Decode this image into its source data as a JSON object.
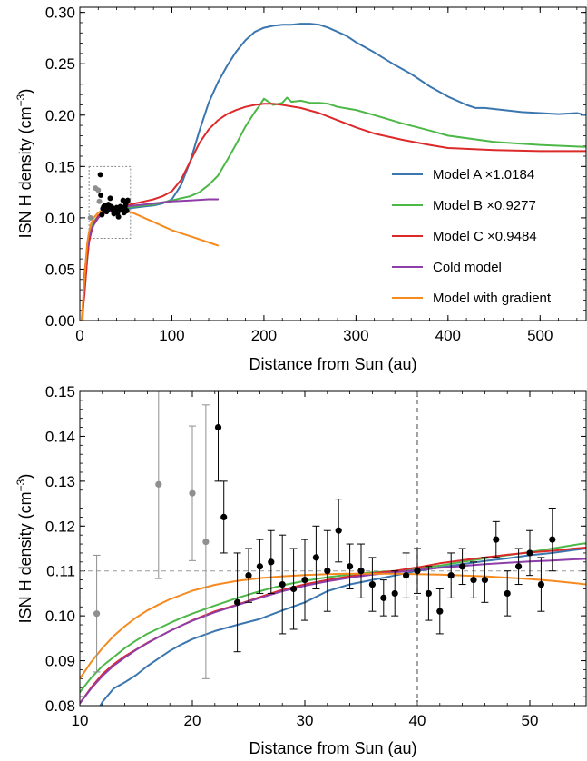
{
  "chart_data": [
    {
      "type": "line",
      "xlabel": "Distance from Sun (au)",
      "ylabel_main": "ISN H density (cm",
      "ylabel_sup": "−3",
      "ylabel_close": ")",
      "xlim": [
        0,
        550
      ],
      "ylim": [
        0,
        0.305
      ],
      "xticks": [
        0,
        100,
        200,
        300,
        400,
        500
      ],
      "xtick_labels": [
        "0",
        "100",
        "200",
        "300",
        "400",
        "500"
      ],
      "yticks": [
        0,
        0.05,
        0.1,
        0.15,
        0.2,
        0.25,
        0.3
      ],
      "ytick_labels": [
        "0.00",
        "0.05",
        "0.10",
        "0.15",
        "0.20",
        "0.25",
        "0.30"
      ],
      "legend_position": "right",
      "zoom_box": {
        "x": [
          10,
          55
        ],
        "y": [
          0.08,
          0.15
        ]
      },
      "series": [
        {
          "name": "Model A ×1.0184",
          "color": "#3b76af",
          "x": [
            5,
            10,
            15,
            20,
            25,
            30,
            40,
            50,
            60,
            70,
            80,
            90,
            100,
            110,
            120,
            130,
            140,
            150,
            160,
            170,
            180,
            190,
            200,
            210,
            220,
            230,
            240,
            250,
            260,
            270,
            280,
            290,
            300,
            320,
            340,
            360,
            380,
            400,
            420,
            430,
            440,
            460,
            480,
            500,
            520,
            540,
            550
          ],
          "y": [
            0.03,
            0.078,
            0.094,
            0.101,
            0.104,
            0.106,
            0.108,
            0.109,
            0.11,
            0.111,
            0.112,
            0.114,
            0.118,
            0.132,
            0.155,
            0.185,
            0.212,
            0.232,
            0.248,
            0.262,
            0.273,
            0.281,
            0.285,
            0.287,
            0.288,
            0.288,
            0.289,
            0.289,
            0.288,
            0.285,
            0.281,
            0.277,
            0.271,
            0.261,
            0.25,
            0.24,
            0.228,
            0.218,
            0.21,
            0.207,
            0.207,
            0.205,
            0.203,
            0.202,
            0.201,
            0.202,
            0.2
          ]
        },
        {
          "name": "Model B ×0.9277",
          "color": "#4db848",
          "x": [
            5,
            10,
            15,
            20,
            25,
            30,
            40,
            50,
            60,
            70,
            80,
            90,
            100,
            110,
            120,
            130,
            140,
            150,
            160,
            170,
            180,
            190,
            195,
            200,
            205,
            210,
            220,
            225,
            230,
            240,
            250,
            260,
            270,
            280,
            300,
            320,
            350,
            380,
            400,
            450,
            500,
            550
          ],
          "y": [
            0.03,
            0.082,
            0.096,
            0.102,
            0.105,
            0.107,
            0.108,
            0.11,
            0.111,
            0.112,
            0.113,
            0.115,
            0.117,
            0.119,
            0.121,
            0.125,
            0.132,
            0.141,
            0.156,
            0.172,
            0.189,
            0.203,
            0.209,
            0.216,
            0.213,
            0.21,
            0.212,
            0.217,
            0.213,
            0.214,
            0.212,
            0.212,
            0.211,
            0.208,
            0.205,
            0.2,
            0.192,
            0.185,
            0.18,
            0.174,
            0.171,
            0.169
          ]
        },
        {
          "name": "Model C ×0.9484",
          "color": "#dc2a2a",
          "x": [
            2,
            5,
            8,
            10,
            12,
            15,
            20,
            25,
            30,
            40,
            50,
            60,
            70,
            80,
            90,
            100,
            110,
            120,
            130,
            140,
            150,
            160,
            170,
            180,
            190,
            200,
            210,
            220,
            240,
            260,
            280,
            300,
            320,
            350,
            380,
            400,
            450,
            500,
            550
          ],
          "y": [
            0.0,
            0.025,
            0.06,
            0.076,
            0.085,
            0.094,
            0.102,
            0.106,
            0.108,
            0.11,
            0.112,
            0.114,
            0.116,
            0.118,
            0.121,
            0.126,
            0.137,
            0.155,
            0.173,
            0.186,
            0.195,
            0.201,
            0.205,
            0.208,
            0.21,
            0.211,
            0.211,
            0.21,
            0.207,
            0.202,
            0.195,
            0.188,
            0.182,
            0.176,
            0.171,
            0.168,
            0.166,
            0.165,
            0.165
          ]
        },
        {
          "name": "Cold model",
          "color": "#8e3ea8",
          "x": [
            3,
            5,
            8,
            10,
            12,
            15,
            20,
            25,
            30,
            40,
            50,
            60,
            70,
            80,
            90,
            100,
            120,
            140,
            150
          ],
          "y": [
            0.0,
            0.045,
            0.07,
            0.08,
            0.087,
            0.093,
            0.1,
            0.104,
            0.106,
            0.109,
            0.111,
            0.112,
            0.113,
            0.114,
            0.115,
            0.116,
            0.117,
            0.118,
            0.118
          ]
        },
        {
          "name": "Model with gradient",
          "color": "#f58a1f",
          "x": [
            2,
            5,
            8,
            10,
            12,
            15,
            20,
            25,
            30,
            40,
            50,
            60,
            70,
            80,
            90,
            100,
            110,
            120,
            130,
            140,
            150
          ],
          "y": [
            0.0,
            0.04,
            0.075,
            0.086,
            0.094,
            0.1,
            0.105,
            0.108,
            0.109,
            0.109,
            0.107,
            0.104,
            0.1,
            0.096,
            0.092,
            0.088,
            0.085,
            0.082,
            0.079,
            0.076,
            0.073
          ]
        }
      ],
      "data_black": {
        "x": [
          22.3,
          22.8,
          24,
          25,
          26,
          27,
          28,
          29,
          30,
          31,
          32,
          33,
          34,
          35,
          36,
          37,
          38,
          39,
          40,
          41,
          42,
          43,
          44,
          45,
          46,
          47,
          48,
          49,
          50,
          51,
          52
        ],
        "y": [
          0.142,
          0.122,
          0.103,
          0.109,
          0.111,
          0.112,
          0.107,
          0.106,
          0.108,
          0.113,
          0.11,
          0.119,
          0.111,
          0.11,
          0.107,
          0.104,
          0.105,
          0.109,
          0.11,
          0.105,
          0.101,
          0.109,
          0.111,
          0.108,
          0.108,
          0.117,
          0.105,
          0.111,
          0.114,
          0.107,
          0.117
        ]
      },
      "data_gray": {
        "x": [
          11.5,
          17,
          20,
          21.2
        ],
        "y": [
          0.1,
          0.129,
          0.127,
          0.116
        ]
      }
    },
    {
      "type": "line",
      "xlabel": "Distance from Sun (au)",
      "ylabel_main": "ISN H density (cm",
      "ylabel_sup": "−3",
      "ylabel_close": ")",
      "xlim": [
        10,
        55
      ],
      "ylim": [
        0.08,
        0.15
      ],
      "xticks": [
        10,
        20,
        30,
        40,
        50
      ],
      "xtick_labels": [
        "10",
        "20",
        "30",
        "40",
        "50"
      ],
      "yticks": [
        0.08,
        0.09,
        0.1,
        0.11,
        0.12,
        0.13,
        0.14,
        0.15
      ],
      "ytick_labels": [
        "0.08",
        "0.09",
        "0.10",
        "0.11",
        "0.12",
        "0.13",
        "0.14",
        "0.15"
      ],
      "reference_lines": {
        "vertical_x": 40,
        "horizontal_y": 0.11
      },
      "series": [
        {
          "name": "Model A ×1.0184",
          "color": "#3b76af",
          "x": [
            11.7,
            12,
            13,
            14,
            15,
            16,
            17,
            18,
            19,
            20,
            22,
            24,
            26,
            28,
            30,
            32,
            34,
            36,
            38,
            40,
            42,
            44,
            46,
            48,
            50,
            52,
            54,
            55
          ],
          "y": [
            0.0795,
            0.0808,
            0.0838,
            0.0852,
            0.0868,
            0.0888,
            0.0905,
            0.0922,
            0.0936,
            0.0948,
            0.0966,
            0.098,
            0.0993,
            0.1012,
            0.103,
            0.1055,
            0.107,
            0.108,
            0.109,
            0.11,
            0.1108,
            0.1115,
            0.1122,
            0.1128,
            0.1135,
            0.114,
            0.1147,
            0.115
          ]
        },
        {
          "name": "Model B ×0.9277",
          "color": "#4db848",
          "x": [
            10,
            11,
            12,
            13,
            14,
            15,
            16,
            17,
            18,
            19,
            20,
            22,
            24,
            26,
            28,
            30,
            32,
            34,
            36,
            38,
            40,
            42,
            44,
            46,
            48,
            50,
            52,
            54,
            55
          ],
          "y": [
            0.083,
            0.0862,
            0.0888,
            0.0908,
            0.0928,
            0.0945,
            0.096,
            0.0972,
            0.0984,
            0.0995,
            0.1005,
            0.1023,
            0.104,
            0.1055,
            0.1068,
            0.1078,
            0.1086,
            0.1092,
            0.1097,
            0.11,
            0.1105,
            0.1112,
            0.112,
            0.1128,
            0.1135,
            0.1142,
            0.115,
            0.1158,
            0.1162
          ]
        },
        {
          "name": "Model C ×0.9484",
          "color": "#dc2a2a",
          "x": [
            10,
            11,
            12,
            13,
            14,
            15,
            16,
            17,
            18,
            19,
            20,
            22,
            24,
            26,
            28,
            30,
            32,
            34,
            36,
            38,
            40,
            42,
            44,
            46,
            48,
            50,
            52,
            54,
            55
          ],
          "y": [
            0.0805,
            0.084,
            0.087,
            0.0892,
            0.091,
            0.0925,
            0.094,
            0.0953,
            0.0966,
            0.0978,
            0.099,
            0.101,
            0.1025,
            0.1042,
            0.1058,
            0.107,
            0.108,
            0.1088,
            0.1095,
            0.11,
            0.1108,
            0.1117,
            0.1124,
            0.113,
            0.1136,
            0.1141,
            0.1145,
            0.115,
            0.1152
          ]
        },
        {
          "name": "Cold model",
          "color": "#8e3ea8",
          "x": [
            10,
            11,
            12,
            13,
            14,
            15,
            16,
            17,
            18,
            19,
            20,
            22,
            24,
            26,
            28,
            30,
            32,
            34,
            36,
            38,
            40,
            42,
            44,
            46,
            48,
            50,
            52,
            54,
            55
          ],
          "y": [
            0.0805,
            0.0838,
            0.0866,
            0.0889,
            0.0907,
            0.0924,
            0.0939,
            0.0953,
            0.0966,
            0.0978,
            0.0989,
            0.1008,
            0.1024,
            0.104,
            0.1055,
            0.1067,
            0.1077,
            0.1085,
            0.1092,
            0.1097,
            0.1102,
            0.1107,
            0.1111,
            0.1115,
            0.1118,
            0.1121,
            0.1123,
            0.1126,
            0.1127
          ]
        },
        {
          "name": "Model with gradient",
          "color": "#f58a1f",
          "x": [
            10,
            11,
            12,
            13,
            14,
            15,
            16,
            17,
            18,
            20,
            22,
            24,
            26,
            28,
            30,
            32,
            34,
            36,
            38,
            40,
            42,
            44,
            46,
            48,
            50,
            52,
            54,
            55
          ],
          "y": [
            0.086,
            0.0897,
            0.0928,
            0.0955,
            0.0977,
            0.0996,
            0.1012,
            0.1025,
            0.1037,
            0.1056,
            0.1069,
            0.1078,
            0.1084,
            0.1088,
            0.1091,
            0.1093,
            0.1094,
            0.1094,
            0.1094,
            0.1093,
            0.1092,
            0.109,
            0.1088,
            0.1085,
            0.1082,
            0.1078,
            0.1073,
            0.107
          ]
        }
      ],
      "data_black": {
        "x": [
          22.3,
          22.8,
          24,
          25,
          26,
          27,
          28,
          29,
          30,
          31,
          32,
          33,
          34,
          35,
          36,
          37,
          38,
          39,
          40,
          41,
          42,
          43,
          44,
          45,
          46,
          47,
          48,
          49,
          50,
          51,
          52
        ],
        "y": [
          0.142,
          0.122,
          0.103,
          0.109,
          0.111,
          0.112,
          0.107,
          0.106,
          0.108,
          0.113,
          0.11,
          0.119,
          0.111,
          0.11,
          0.107,
          0.104,
          0.105,
          0.109,
          0.11,
          0.105,
          0.101,
          0.109,
          0.111,
          0.108,
          0.108,
          0.117,
          0.105,
          0.111,
          0.114,
          0.107,
          0.117
        ],
        "err": [
          0.012,
          0.008,
          0.011,
          0.006,
          0.006,
          0.007,
          0.011,
          0.009,
          0.009,
          0.007,
          0.009,
          0.007,
          0.005,
          0.006,
          0.006,
          0.004,
          0.005,
          0.005,
          0.005,
          0.006,
          0.005,
          0.005,
          0.004,
          0.004,
          0.005,
          0.004,
          0.005,
          0.004,
          0.005,
          0.006,
          0.007
        ]
      },
      "data_gray": {
        "x": [
          11.5,
          17,
          20,
          21.2
        ],
        "y": [
          0.1005,
          0.1293,
          0.1273,
          0.1165
        ],
        "err": [
          0.013,
          0.021,
          0.015,
          0.0305
        ]
      }
    }
  ]
}
